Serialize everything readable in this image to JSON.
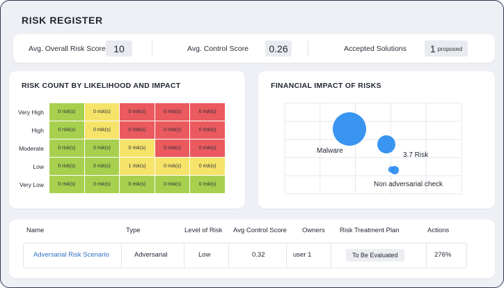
{
  "page": {
    "title": "RISK REGISTER"
  },
  "metrics": {
    "avg_overall_risk_score": {
      "label": "Avg. Overall Risk Score",
      "value": "10"
    },
    "avg_control_score": {
      "label": "Avg. Control Score",
      "value": "0.26"
    },
    "accepted_solutions": {
      "label": "Accepted Solutions",
      "value": "1",
      "suffix": "proposed"
    }
  },
  "heatmap": {
    "title": "RISK COUNT BY LIKELIHOOD AND IMPACT",
    "rows": [
      "Very High",
      "High",
      "Moderate",
      "Low",
      "Very Low"
    ],
    "colors": {
      "green": "#a8d04f",
      "yellow": "#f6e36a",
      "red": "#ea5a5f"
    },
    "cells": [
      [
        {
          "text": "0 risk(s)",
          "level": "green"
        },
        {
          "text": "0 risk(s)",
          "level": "yellow"
        },
        {
          "text": "0 risk(s)",
          "level": "red"
        },
        {
          "text": "0 risk(s)",
          "level": "red"
        },
        {
          "text": "0 risk(s)",
          "level": "red"
        }
      ],
      [
        {
          "text": "0 risk(s)",
          "level": "green"
        },
        {
          "text": "0 risk(s)",
          "level": "yellow"
        },
        {
          "text": "0 risk(s)",
          "level": "red"
        },
        {
          "text": "0 risk(s)",
          "level": "red"
        },
        {
          "text": "0 risk(s)",
          "level": "red"
        }
      ],
      [
        {
          "text": "0 risk(s)",
          "level": "green"
        },
        {
          "text": "0 risk(s)",
          "level": "green"
        },
        {
          "text": "0 risk(s)",
          "level": "yellow"
        },
        {
          "text": "0 risk(s)",
          "level": "red"
        },
        {
          "text": "0 risk(s)",
          "level": "red"
        }
      ],
      [
        {
          "text": "0 risk(s)",
          "level": "green"
        },
        {
          "text": "0 risk(s)",
          "level": "green"
        },
        {
          "text": "1 risk(s)",
          "level": "yellow"
        },
        {
          "text": "0 risk(s)",
          "level": "yellow"
        },
        {
          "text": "0 risk(s)",
          "level": "yellow"
        }
      ],
      [
        {
          "text": "0 risk(s)",
          "level": "green"
        },
        {
          "text": "0 risk(s)",
          "level": "green"
        },
        {
          "text": "0 risk(s)",
          "level": "green"
        },
        {
          "text": "0 risk(s)",
          "level": "green"
        },
        {
          "text": "0 risk(s)",
          "level": "green"
        }
      ]
    ]
  },
  "financial_impact": {
    "title": "FINANCIAL IMPACT OF RISKS",
    "bubble_color": "#2f8ff0",
    "bubbles": [
      {
        "label": "Malware",
        "size": "large"
      },
      {
        "label": "3.7 Risk",
        "size": "medium"
      },
      {
        "label": "Non adversarial check",
        "size": "small"
      }
    ]
  },
  "table": {
    "headers": [
      "Name",
      "Type",
      "Level of Risk",
      "Avg Control Score",
      "Owners",
      "Risk Treatment Plan",
      "Actions"
    ],
    "rows": [
      {
        "name": "Adversarial Risk Scenario",
        "type": "Adversarial",
        "level": "Low",
        "avg_control_score": "0.32",
        "owners": "user 1",
        "treatment_plan": "To Be Evaluated",
        "actions": "276%"
      }
    ]
  }
}
